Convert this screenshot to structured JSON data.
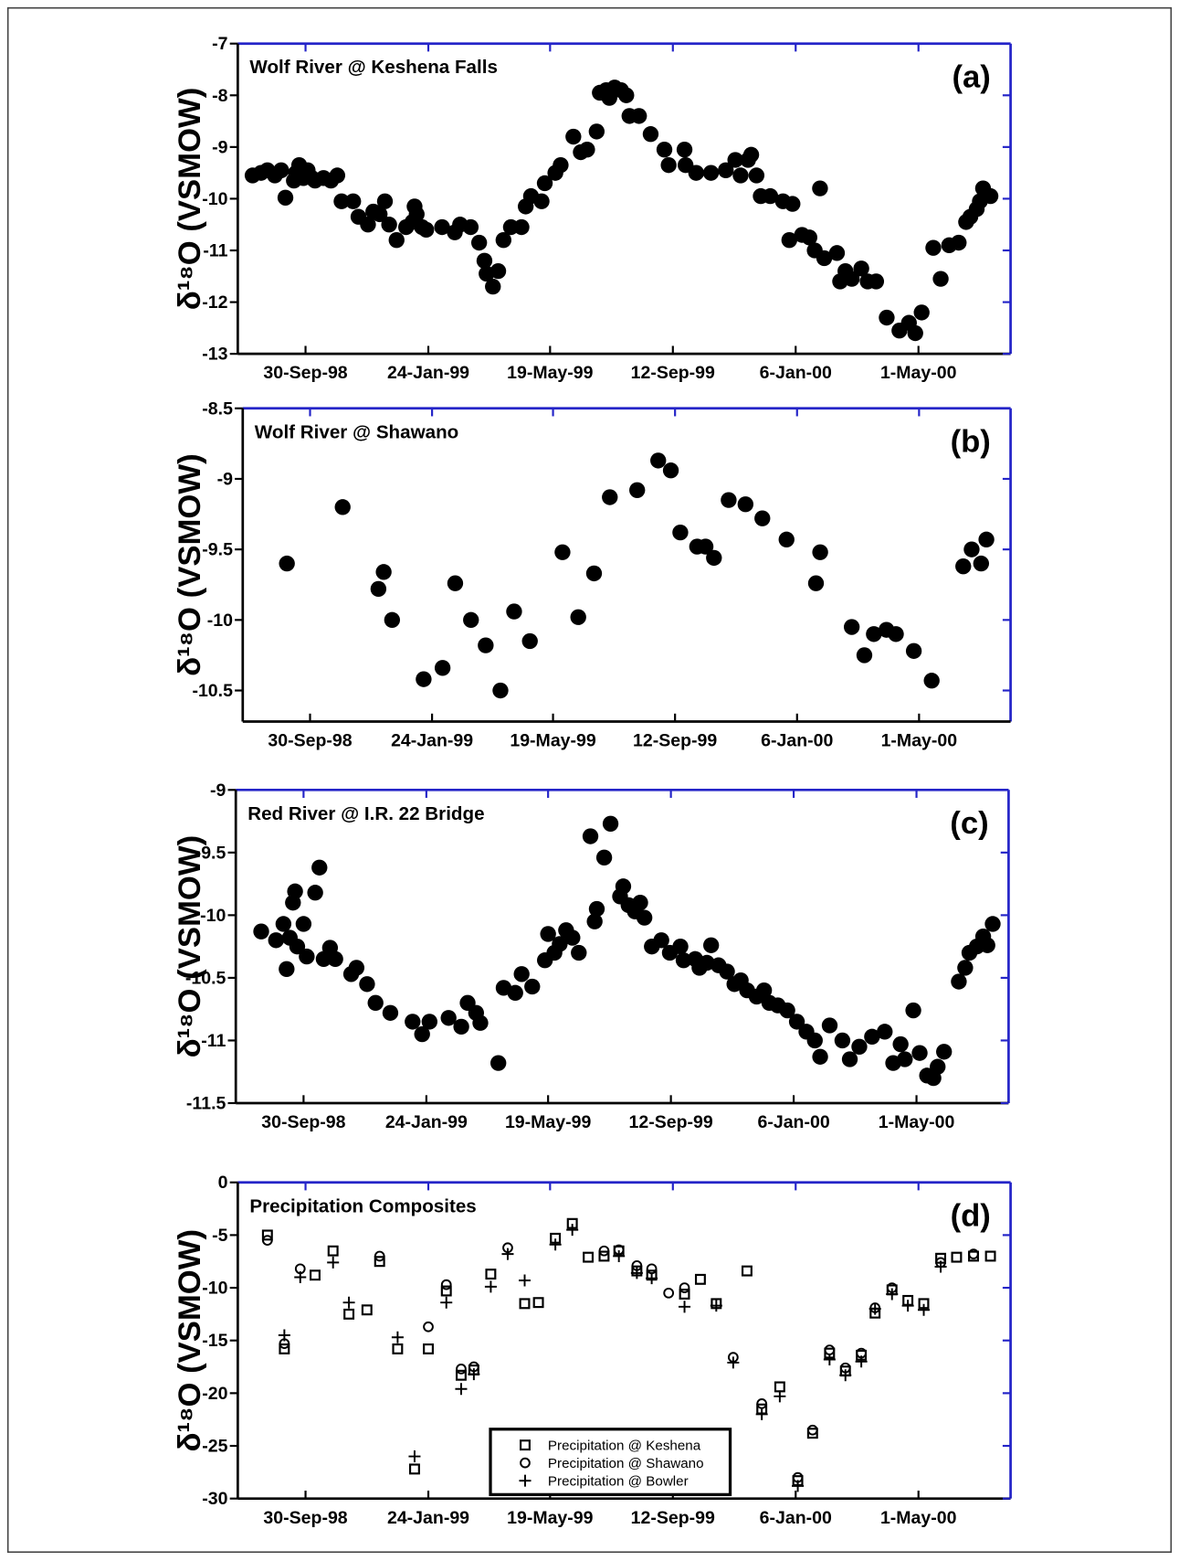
{
  "chart_data": [
    {
      "type": "scatter",
      "title": "Wolf River @ Keshena Falls",
      "panel_label": "(a)",
      "y_label": "δ¹⁸O (VSMOW)",
      "marker": "dot",
      "color": "#000000",
      "x": [
        "1998-08-11",
        "1998-08-19",
        "1998-08-25",
        "1998-09-01",
        "1998-09-07",
        "1998-09-11",
        "1998-09-19",
        "1998-09-21",
        "1998-09-24",
        "1998-09-28",
        "1998-10-02",
        "1998-10-06",
        "1998-10-09",
        "1998-10-17",
        "1998-10-24",
        "1998-10-30",
        "1998-11-03",
        "1998-11-14",
        "1998-11-19",
        "1998-11-28",
        "1998-12-03",
        "1998-12-09",
        "1998-12-14",
        "1998-12-18",
        "1998-12-25",
        "1999-01-03",
        "1999-01-09",
        "1999-01-11",
        "1999-01-13",
        "1999-01-18",
        "1999-01-22",
        "1999-02-06",
        "1999-02-18",
        "1999-02-23",
        "1999-03-05",
        "1999-03-13",
        "1999-03-18",
        "1999-03-20",
        "1999-03-26",
        "1999-03-31",
        "1999-04-05",
        "1999-04-12",
        "1999-04-22",
        "1999-04-26",
        "1999-05-01",
        "1999-05-11",
        "1999-05-14",
        "1999-05-24",
        "1999-05-29",
        "1999-06-10",
        "1999-06-17",
        "1999-06-23",
        "1999-07-02",
        "1999-07-05",
        "1999-07-11",
        "1999-07-14",
        "1999-07-19",
        "1999-07-25",
        "1999-07-30",
        "1999-08-02",
        "1999-08-11",
        "1999-08-22",
        "1999-09-04",
        "1999-09-08",
        "1999-09-23",
        "1999-09-24",
        "1999-10-04",
        "1999-10-18",
        "1999-11-01",
        "1999-11-10",
        "1999-11-15",
        "1999-11-22",
        "1999-11-25",
        "1999-11-30",
        "1999-12-04",
        "1999-12-13",
        "1999-12-25",
        "1999-12-31",
        "2000-01-03",
        "2000-01-12",
        "2000-01-19",
        "2000-01-24",
        "2000-01-29",
        "2000-02-02",
        "2000-02-14",
        "2000-02-17",
        "2000-02-22",
        "2000-02-28",
        "2000-03-08",
        "2000-03-14",
        "2000-03-22",
        "2000-04-01",
        "2000-04-13",
        "2000-04-22",
        "2000-04-28",
        "2000-05-04",
        "2000-05-15",
        "2000-05-22",
        "2000-05-30",
        "2000-06-08",
        "2000-06-15",
        "2000-06-19",
        "2000-06-25",
        "2000-06-28",
        "2000-07-01",
        "2000-07-08"
      ],
      "values": [
        -9.55,
        -9.5,
        -9.45,
        -9.55,
        -9.45,
        -9.98,
        -9.65,
        -9.5,
        -9.35,
        -9.6,
        -9.45,
        -9.6,
        -9.65,
        -9.6,
        -9.65,
        -9.55,
        -10.05,
        -10.05,
        -10.35,
        -10.5,
        -10.25,
        -10.3,
        -10.05,
        -10.5,
        -10.8,
        -10.55,
        -10.45,
        -10.15,
        -10.3,
        -10.55,
        -10.6,
        -10.55,
        -10.65,
        -10.5,
        -10.55,
        -10.85,
        -11.2,
        -11.45,
        -11.7,
        -11.4,
        -10.8,
        -10.55,
        -10.55,
        -10.15,
        -9.95,
        -10.05,
        -9.7,
        -9.5,
        -9.35,
        -8.8,
        -9.1,
        -9.05,
        -8.7,
        -7.95,
        -7.9,
        -8.05,
        -7.85,
        -7.9,
        -8.0,
        -8.4,
        -8.4,
        -8.75,
        -9.05,
        -9.35,
        -9.05,
        -9.35,
        -9.5,
        -9.5,
        -9.45,
        -9.25,
        -9.55,
        -9.25,
        -9.15,
        -9.55,
        -9.95,
        -9.95,
        -10.05,
        -10.8,
        -10.1,
        -10.7,
        -10.75,
        -11.0,
        -9.8,
        -11.15,
        -11.05,
        -11.6,
        -11.4,
        -11.55,
        -11.35,
        -11.6,
        -11.6,
        -12.3,
        -12.55,
        -12.4,
        -12.6,
        -12.2,
        -10.95,
        -11.55,
        -10.9,
        -10.85,
        -10.45,
        -10.35,
        -10.2,
        -10.05,
        -9.8,
        -9.95
      ],
      "xlim": [
        "1998-07-28",
        "2000-07-27"
      ],
      "xticks": [
        {
          "value": "1998-09-30",
          "label": "30-Sep-98"
        },
        {
          "value": "1999-01-24",
          "label": "24-Jan-99"
        },
        {
          "value": "1999-05-19",
          "label": "19-May-99"
        },
        {
          "value": "1999-09-12",
          "label": "12-Sep-99"
        },
        {
          "value": "2000-01-06",
          "label": "6-Jan-00"
        },
        {
          "value": "2000-05-01",
          "label": "1-May-00"
        }
      ],
      "ylim": [
        -13,
        -7
      ],
      "yticks": [
        -13,
        -12,
        -11,
        -10,
        -9,
        -8,
        -7
      ]
    },
    {
      "type": "scatter",
      "title": "Wolf River @ Shawano",
      "panel_label": "(b)",
      "y_label": "δ¹⁸O (VSMOW)",
      "marker": "dot",
      "color": "#000000",
      "x": [
        "1998-09-08",
        "1998-10-31",
        "1998-12-04",
        "1998-12-09",
        "1998-12-17",
        "1999-01-16",
        "1999-02-03",
        "1999-02-15",
        "1999-03-02",
        "1999-03-16",
        "1999-03-30",
        "1999-04-12",
        "1999-04-27",
        "1999-05-28",
        "1999-06-12",
        "1999-06-27",
        "1999-07-12",
        "1999-08-07",
        "1999-08-27",
        "1999-09-08",
        "1999-09-17",
        "1999-10-03",
        "1999-10-11",
        "1999-10-19",
        "1999-11-02",
        "1999-11-18",
        "1999-12-04",
        "1999-12-27",
        "2000-01-24",
        "2000-01-28",
        "2000-02-27",
        "2000-03-10",
        "2000-03-19",
        "2000-03-31",
        "2000-04-09",
        "2000-04-26",
        "2000-05-13",
        "2000-06-12",
        "2000-06-20",
        "2000-06-29",
        "2000-07-04"
      ],
      "values": [
        -9.6,
        -9.2,
        -9.78,
        -9.66,
        -10.0,
        -10.42,
        -10.34,
        -9.74,
        -10.0,
        -10.18,
        -10.5,
        -9.94,
        -10.15,
        -9.52,
        -9.98,
        -9.67,
        -9.13,
        -9.08,
        -8.87,
        -8.94,
        -9.38,
        -9.48,
        -9.48,
        -9.56,
        -9.15,
        -9.18,
        -9.28,
        -9.43,
        -9.74,
        -9.52,
        -10.05,
        -10.25,
        -10.1,
        -10.07,
        -10.1,
        -10.22,
        -10.43,
        -9.62,
        -9.5,
        -9.6,
        -9.43
      ],
      "xlim": [
        "1998-07-28",
        "2000-07-27"
      ],
      "xticks": [
        {
          "value": "1998-09-30",
          "label": "30-Sep-98"
        },
        {
          "value": "1999-01-24",
          "label": "24-Jan-99"
        },
        {
          "value": "1999-05-19",
          "label": "19-May-99"
        },
        {
          "value": "1999-09-12",
          "label": "12-Sep-99"
        },
        {
          "value": "2000-01-06",
          "label": "6-Jan-00"
        },
        {
          "value": "2000-05-01",
          "label": "1-May-00"
        }
      ],
      "ylim": [
        -10.72,
        -8.5
      ],
      "yticks": [
        -10.5,
        -10,
        -9.5,
        -9,
        -8.5
      ]
    },
    {
      "type": "scatter",
      "title": "Red River @ I.R. 22 Bridge",
      "panel_label": "(c)",
      "y_label": "δ¹⁸O (VSMOW)",
      "marker": "dot",
      "color": "#000000",
      "x": [
        "1998-08-21",
        "1998-09-04",
        "1998-09-11",
        "1998-09-14",
        "1998-09-17",
        "1998-09-20",
        "1998-09-22",
        "1998-09-24",
        "1998-09-30",
        "1998-10-03",
        "1998-10-11",
        "1998-10-15",
        "1998-10-19",
        "1998-10-25",
        "1998-10-30",
        "1998-11-14",
        "1998-11-19",
        "1998-11-29",
        "1998-12-07",
        "1998-12-21",
        "1999-01-11",
        "1999-01-20",
        "1999-01-27",
        "1999-02-14",
        "1999-02-26",
        "1999-03-04",
        "1999-03-12",
        "1999-03-16",
        "1999-04-02",
        "1999-04-07",
        "1999-04-18",
        "1999-04-24",
        "1999-05-04",
        "1999-05-16",
        "1999-05-19",
        "1999-05-25",
        "1999-05-30",
        "1999-06-05",
        "1999-06-11",
        "1999-06-17",
        "1999-06-28",
        "1999-07-02",
        "1999-07-04",
        "1999-07-11",
        "1999-07-17",
        "1999-07-26",
        "1999-07-29",
        "1999-08-03",
        "1999-08-09",
        "1999-08-14",
        "1999-08-18",
        "1999-08-25",
        "1999-09-03",
        "1999-09-11",
        "1999-09-21",
        "1999-09-24",
        "1999-10-05",
        "1999-10-09",
        "1999-10-16",
        "1999-10-20",
        "1999-10-27",
        "1999-11-04",
        "1999-11-11",
        "1999-11-17",
        "1999-11-23",
        "1999-12-02",
        "1999-12-09",
        "1999-12-14",
        "1999-12-22",
        "1999-12-31",
        "2000-01-09",
        "2000-01-18",
        "2000-01-26",
        "2000-01-31",
        "2000-02-09",
        "2000-02-21",
        "2000-02-28",
        "2000-03-08",
        "2000-03-20",
        "2000-04-01",
        "2000-04-09",
        "2000-04-16",
        "2000-04-20",
        "2000-04-28",
        "2000-05-04",
        "2000-05-11",
        "2000-05-17",
        "2000-05-21",
        "2000-05-27",
        "2000-06-10",
        "2000-06-16",
        "2000-06-20",
        "2000-06-27",
        "2000-07-03",
        "2000-07-07",
        "2000-07-12"
      ],
      "values": [
        -10.13,
        -10.2,
        -10.07,
        -10.43,
        -10.18,
        -9.9,
        -9.81,
        -10.25,
        -10.07,
        -10.33,
        -9.82,
        -9.62,
        -10.35,
        -10.26,
        -10.35,
        -10.47,
        -10.42,
        -10.55,
        -10.7,
        -10.78,
        -10.85,
        -10.95,
        -10.85,
        -10.82,
        -10.89,
        -10.7,
        -10.78,
        -10.86,
        -11.18,
        -10.58,
        -10.62,
        -10.47,
        -10.57,
        -10.36,
        -10.15,
        -10.3,
        -10.23,
        -10.12,
        -10.18,
        -10.3,
        -9.37,
        -10.05,
        -9.95,
        -9.54,
        -9.27,
        -9.85,
        -9.77,
        -9.92,
        -9.97,
        -9.9,
        -10.02,
        -10.25,
        -10.2,
        -10.3,
        -10.25,
        -10.36,
        -10.35,
        -10.42,
        -10.38,
        -10.24,
        -10.4,
        -10.45,
        -10.55,
        -10.52,
        -10.6,
        -10.65,
        -10.6,
        -10.7,
        -10.72,
        -10.76,
        -10.85,
        -10.93,
        -11.0,
        -11.13,
        -10.88,
        -11.0,
        -11.15,
        -11.05,
        -10.97,
        -10.93,
        -11.18,
        -11.03,
        -11.15,
        -10.76,
        -11.1,
        -11.28,
        -11.3,
        -11.21,
        -11.09,
        -10.53,
        -10.42,
        -10.3,
        -10.25,
        -10.17,
        -10.24,
        -10.07
      ],
      "xlim": [
        "1998-07-28",
        "2000-07-27"
      ],
      "xticks": [
        {
          "value": "1998-09-30",
          "label": "30-Sep-98"
        },
        {
          "value": "1999-01-24",
          "label": "24-Jan-99"
        },
        {
          "value": "1999-05-19",
          "label": "19-May-99"
        },
        {
          "value": "1999-09-12",
          "label": "12-Sep-99"
        },
        {
          "value": "2000-01-06",
          "label": "6-Jan-00"
        },
        {
          "value": "2000-05-01",
          "label": "1-May-00"
        }
      ],
      "ylim": [
        -11.5,
        -9
      ],
      "yticks": [
        -11.5,
        -11,
        -10.5,
        -10,
        -9.5,
        -9
      ]
    },
    {
      "type": "scatter",
      "title": "Precipitation Composites",
      "panel_label": "(d)",
      "y_label": "δ¹⁸O (VSMOW)",
      "legend": "lower center",
      "x": [
        "1998-08-25",
        "1998-09-10",
        "1998-09-25",
        "1998-10-09",
        "1998-10-26",
        "1998-11-10",
        "1998-11-27",
        "1998-12-09",
        "1998-12-26",
        "1999-01-11",
        "1999-01-24",
        "1999-02-10",
        "1999-02-24",
        "1999-03-08",
        "1999-03-24",
        "1999-04-09",
        "1999-04-25",
        "1999-05-08",
        "1999-05-24",
        "1999-06-09",
        "1999-06-24",
        "1999-07-09",
        "1999-07-23",
        "1999-08-09",
        "1999-08-23",
        "1999-09-08",
        "1999-09-23",
        "1999-10-08",
        "1999-10-23",
        "1999-11-08",
        "1999-11-21",
        "1999-12-05",
        "1999-12-22",
        "2000-01-08",
        "2000-01-22",
        "2000-02-07",
        "2000-02-22",
        "2000-03-08",
        "2000-03-21",
        "2000-04-06",
        "2000-04-21",
        "2000-05-06",
        "2000-05-22",
        "2000-06-06",
        "2000-06-22",
        "2000-07-08"
      ],
      "series": [
        {
          "name": "Precipitation @ Keshena",
          "marker": "square",
          "color": "#000000",
          "values": [
            -5.0,
            -15.8,
            null,
            -8.8,
            -6.5,
            -12.5,
            -12.1,
            -7.5,
            -15.8,
            -27.2,
            -15.8,
            -10.3,
            -18.3,
            -17.8,
            -8.7,
            null,
            -11.5,
            -11.4,
            -5.3,
            -3.9,
            -7.1,
            -7.0,
            -6.5,
            -8.4,
            -8.8,
            null,
            -10.6,
            -9.2,
            -11.5,
            null,
            -8.4,
            -21.5,
            -19.4,
            -28.3,
            -23.8,
            -16.2,
            -17.9,
            -16.4,
            -12.4,
            -10.2,
            -11.2,
            -11.5,
            -7.2,
            -7.1,
            -7.0,
            -7.0
          ]
        },
        {
          "name": "Precipitation @ Shawano",
          "marker": "circle",
          "color": "#000000",
          "values": [
            -5.5,
            -15.3,
            -8.2,
            null,
            null,
            null,
            null,
            -7.0,
            null,
            null,
            -13.7,
            -9.7,
            -17.7,
            -17.5,
            null,
            -6.2,
            null,
            null,
            null,
            null,
            null,
            -6.5,
            -6.4,
            -7.9,
            -8.2,
            -10.5,
            -10.0,
            null,
            null,
            -16.6,
            null,
            -21.0,
            null,
            -28.0,
            -23.5,
            -15.9,
            -17.6,
            -16.2,
            -11.9,
            -10.0,
            null,
            null,
            -7.6,
            null,
            -6.8,
            null
          ]
        },
        {
          "name": "Precipitation @ Bowler",
          "marker": "plus",
          "color": "#000000",
          "values": [
            null,
            -14.5,
            -9.0,
            null,
            -7.6,
            -11.4,
            null,
            null,
            -14.7,
            -26.0,
            null,
            -11.4,
            -19.6,
            -18.2,
            -9.9,
            -6.8,
            -9.3,
            null,
            -5.9,
            -4.5,
            null,
            null,
            -7.0,
            -8.6,
            -9.1,
            null,
            -11.8,
            null,
            -11.7,
            -17.1,
            null,
            -22.0,
            -20.3,
            -28.8,
            null,
            -16.8,
            -18.3,
            -17.0,
            -12.0,
            -10.6,
            -11.7,
            -12.1,
            -8.0,
            null,
            null,
            null
          ]
        }
      ],
      "xlim": [
        "1998-07-28",
        "2000-07-27"
      ],
      "xticks": [
        {
          "value": "1998-09-30",
          "label": "30-Sep-98"
        },
        {
          "value": "1999-01-24",
          "label": "24-Jan-99"
        },
        {
          "value": "1999-05-19",
          "label": "19-May-99"
        },
        {
          "value": "1999-09-12",
          "label": "12-Sep-99"
        },
        {
          "value": "2000-01-06",
          "label": "6-Jan-00"
        },
        {
          "value": "2000-05-01",
          "label": "1-May-00"
        }
      ],
      "ylim": [
        -30,
        0
      ],
      "yticks": [
        -30,
        -25,
        -20,
        -15,
        -10,
        -5,
        0
      ]
    }
  ]
}
